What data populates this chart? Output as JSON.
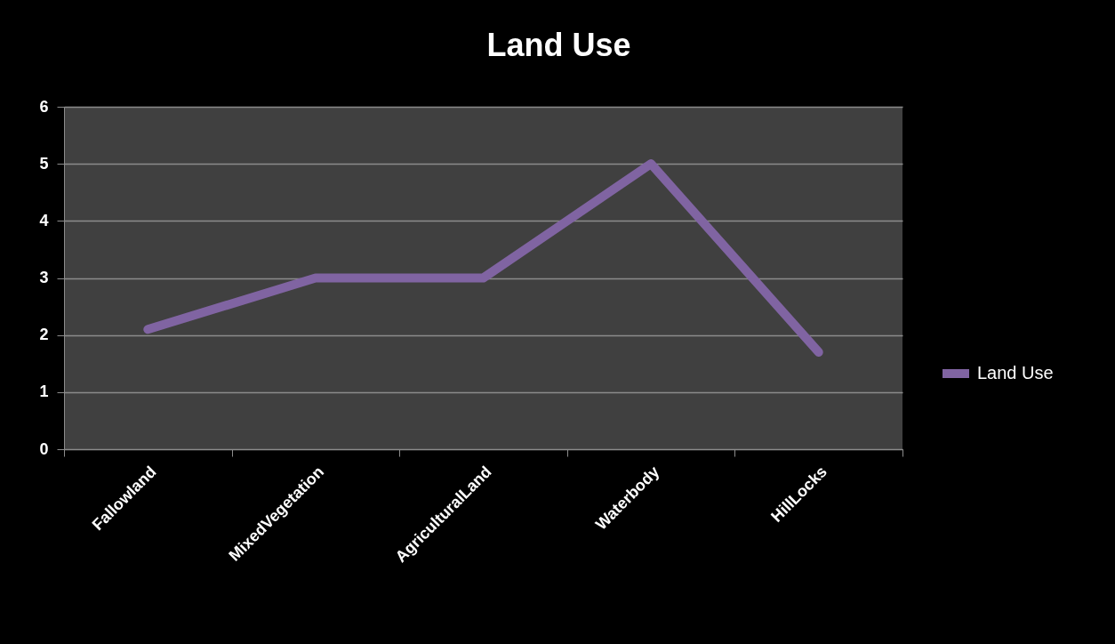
{
  "chart_data": {
    "type": "line",
    "title": "Land Use",
    "categories": [
      "Fallowland",
      "MixedVegetation",
      "AgriculturalLand",
      "Waterbody",
      "HillLocks"
    ],
    "series": [
      {
        "name": "Land Use",
        "color": "#8064a2",
        "values": [
          2.1,
          3,
          3,
          5,
          1.7
        ]
      }
    ],
    "ylim": [
      0,
      6
    ],
    "yticks": [
      0,
      1,
      2,
      3,
      4,
      5,
      6
    ],
    "grid": "y",
    "legend": "right",
    "marker": "none",
    "line_style": "solid"
  }
}
